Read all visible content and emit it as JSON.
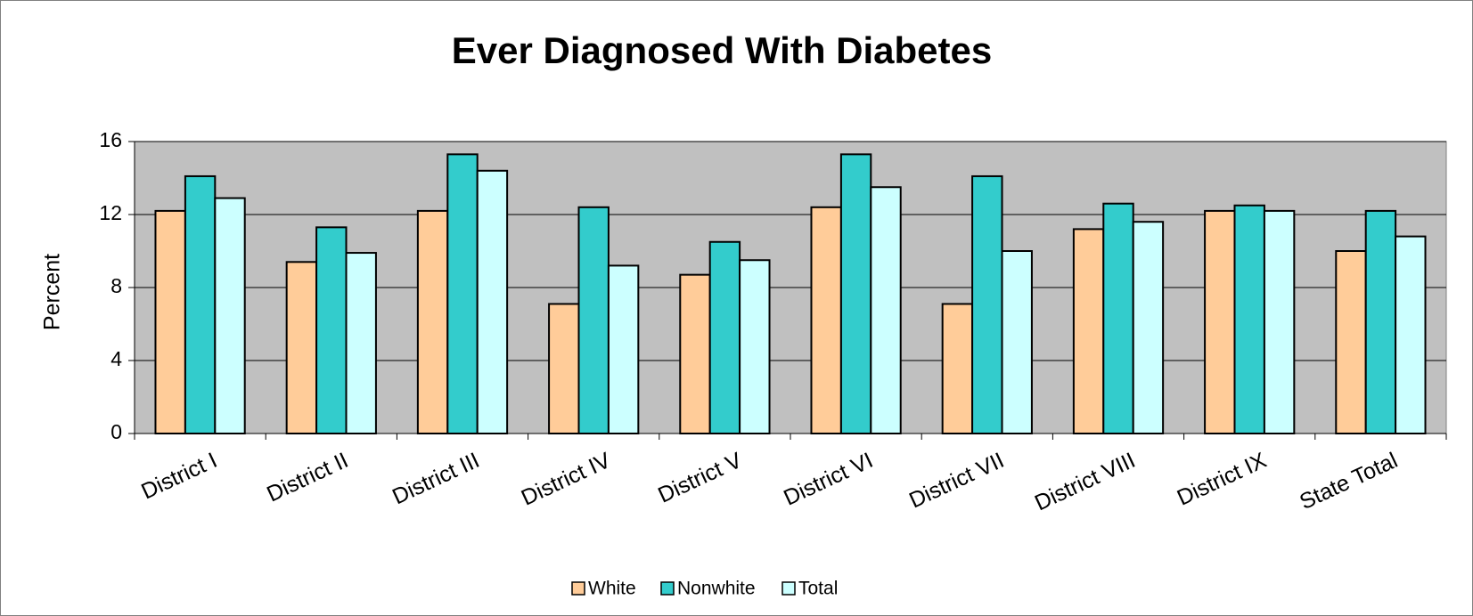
{
  "chart_data": {
    "type": "bar",
    "title": "Ever Diagnosed With Diabetes",
    "y_label": "Percent",
    "categories": [
      "District I",
      "District II",
      "District III",
      "District IV",
      "District V",
      "District VI",
      "District VII",
      "District VIII",
      "District IX",
      "State Total"
    ],
    "series": [
      {
        "name": "White",
        "color": "#ffcc99",
        "values": [
          12.2,
          9.4,
          12.2,
          7.1,
          8.7,
          12.4,
          7.1,
          11.2,
          12.2,
          10.0
        ]
      },
      {
        "name": "Nonwhite",
        "color": "#33cccc",
        "values": [
          14.1,
          11.3,
          15.3,
          12.4,
          10.5,
          15.3,
          14.1,
          12.6,
          12.5,
          12.2
        ]
      },
      {
        "name": "Total",
        "color": "#ccffff",
        "values": [
          12.9,
          9.9,
          14.4,
          9.2,
          9.5,
          13.5,
          10.0,
          11.6,
          12.2,
          10.8
        ]
      }
    ],
    "ylim": [
      0,
      16
    ],
    "yticks": [
      0,
      4,
      8,
      12,
      16
    ],
    "grid": true,
    "plot_background": "#c0c0c0",
    "legend": "bottom"
  }
}
